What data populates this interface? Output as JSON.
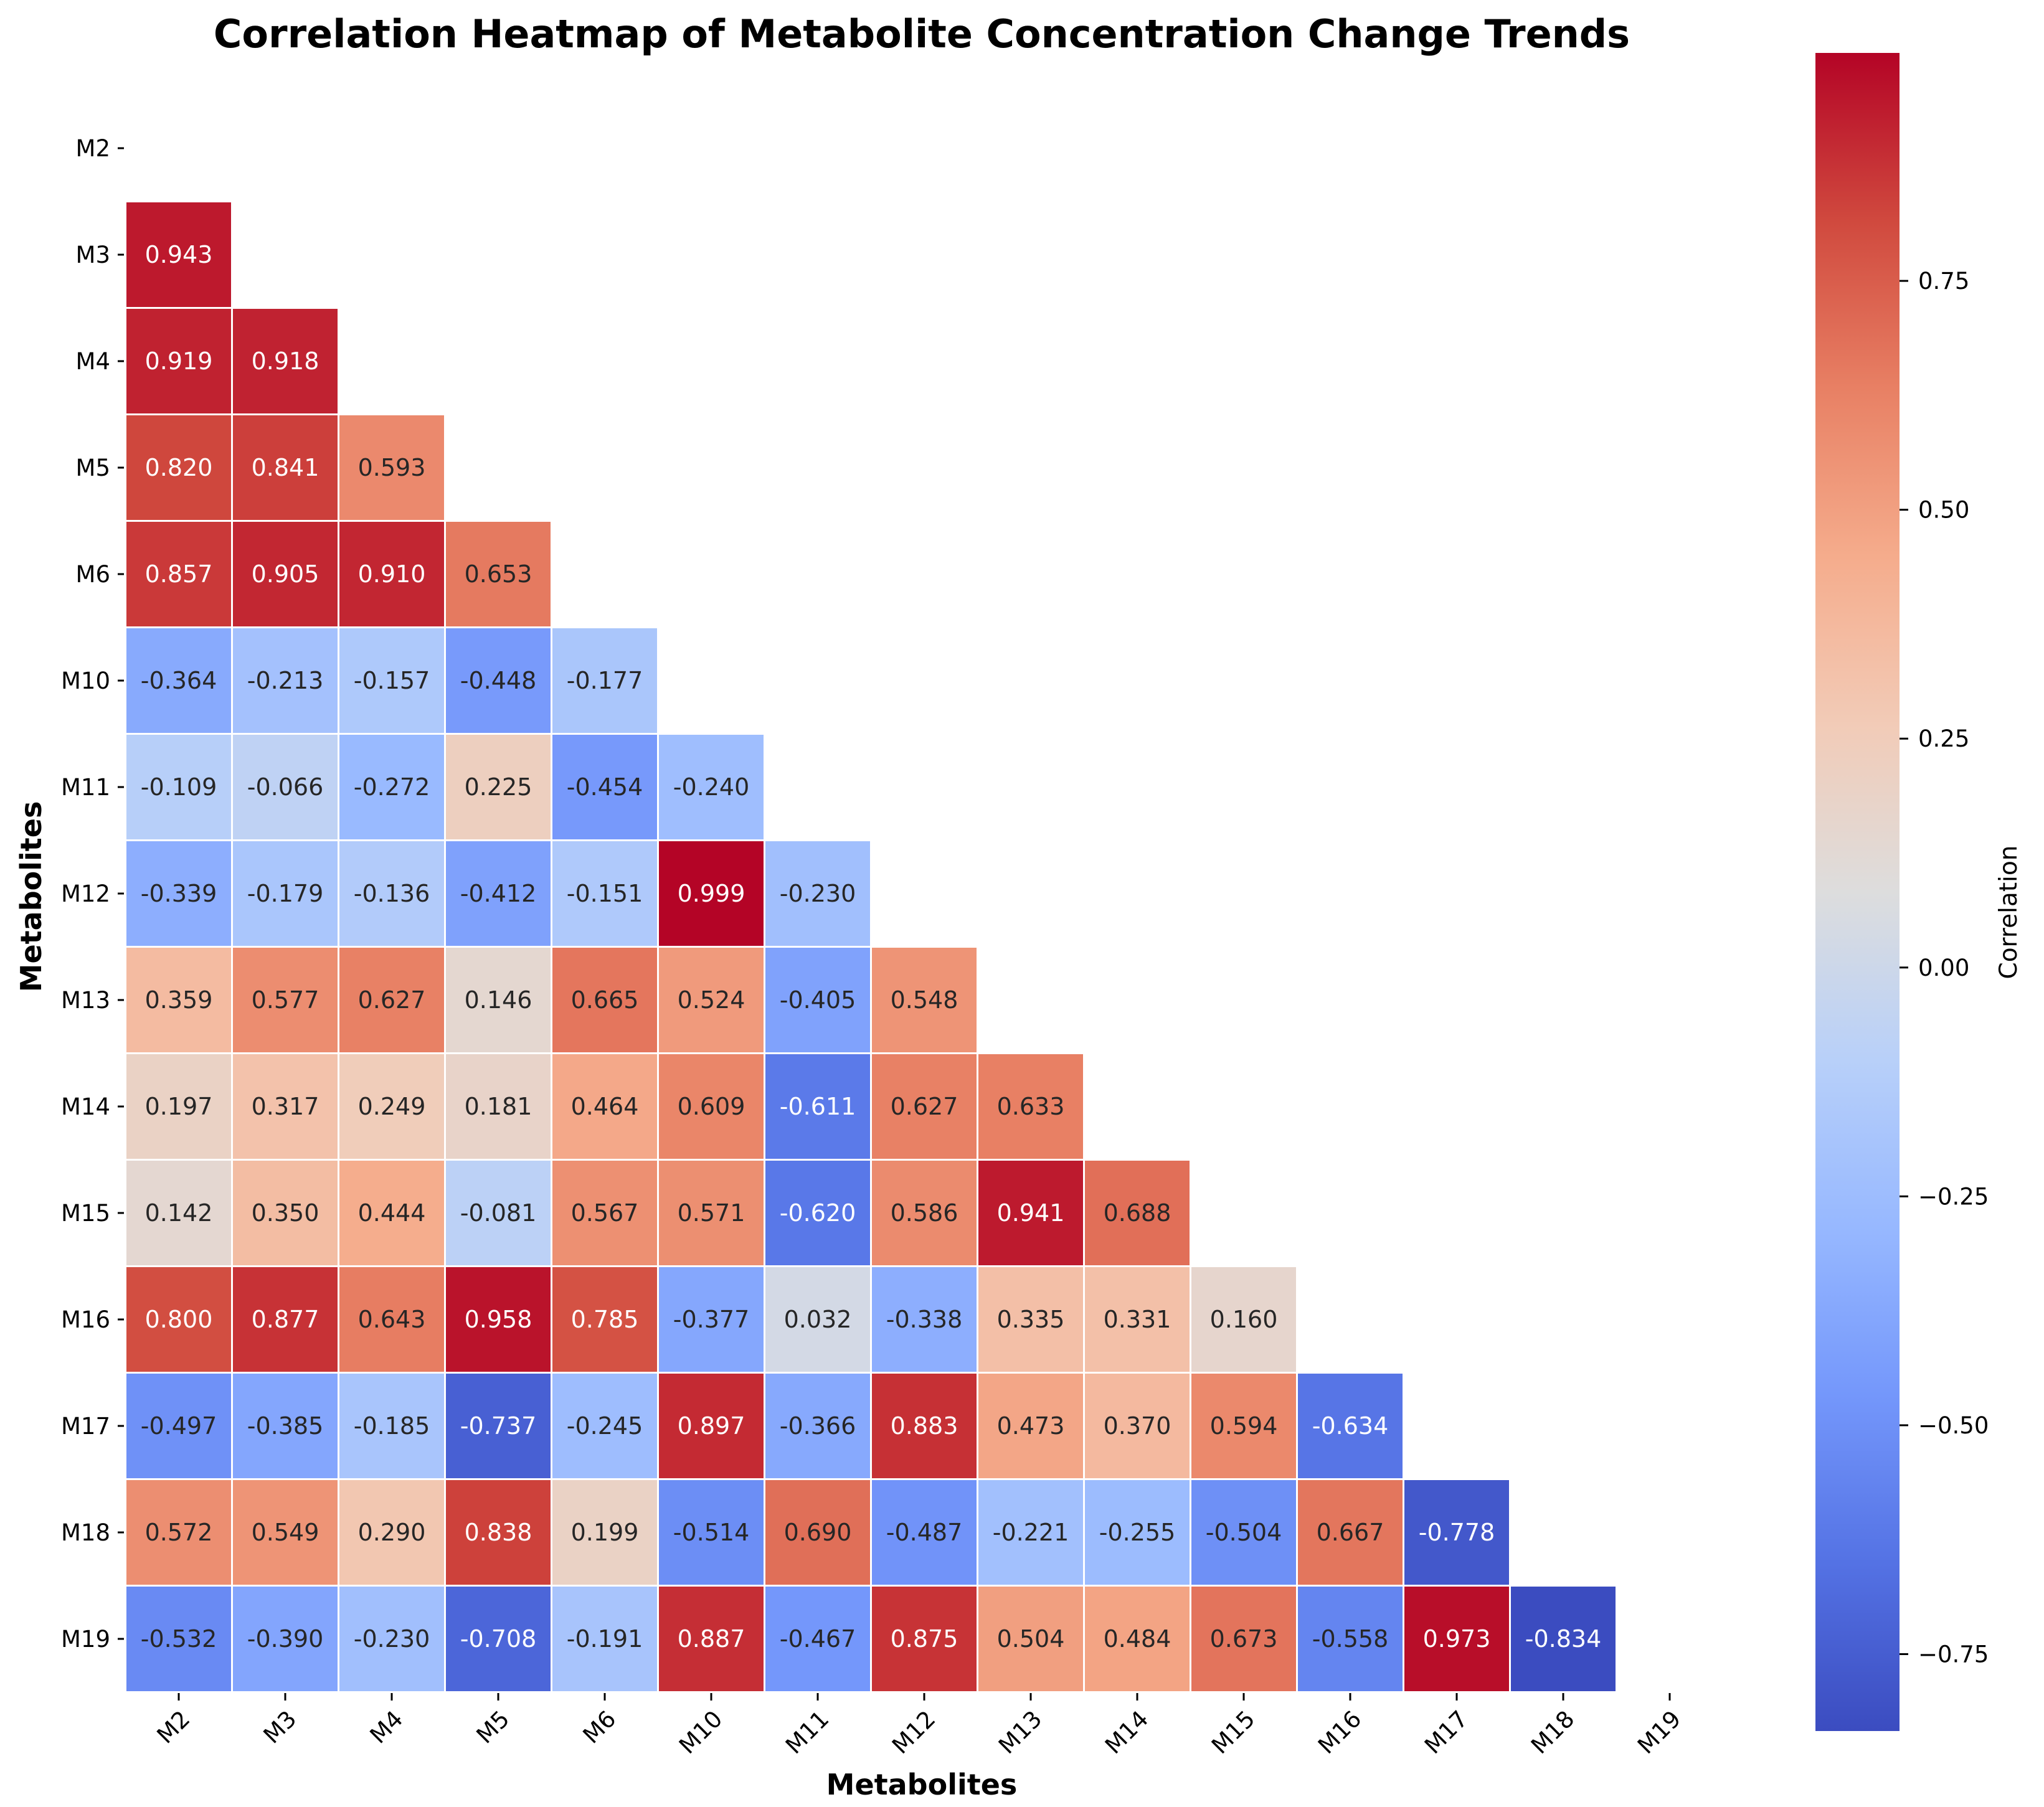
{
  "chart_data": {
    "type": "heatmap",
    "title": "Correlation Heatmap of Metabolite Concentration Change Trends",
    "xlabel": "Metabolites",
    "ylabel": "Metabolites",
    "labels": [
      "M2",
      "M3",
      "M4",
      "M5",
      "M6",
      "M10",
      "M11",
      "M12",
      "M13",
      "M14",
      "M15",
      "M16",
      "M17",
      "M18",
      "M19"
    ],
    "mask": "upper-triangle-including-diagonal",
    "lower_triangle": [
      [],
      [
        0.943
      ],
      [
        0.919,
        0.918
      ],
      [
        0.82,
        0.841,
        0.593
      ],
      [
        0.857,
        0.905,
        0.91,
        0.653
      ],
      [
        -0.364,
        -0.213,
        -0.157,
        -0.448,
        -0.177
      ],
      [
        -0.109,
        -0.066,
        -0.272,
        0.225,
        -0.454,
        -0.24
      ],
      [
        -0.339,
        -0.179,
        -0.136,
        -0.412,
        -0.151,
        0.999,
        -0.23
      ],
      [
        0.359,
        0.577,
        0.627,
        0.146,
        0.665,
        0.524,
        -0.405,
        0.548
      ],
      [
        0.197,
        0.317,
        0.249,
        0.181,
        0.464,
        0.609,
        -0.611,
        0.627,
        0.633
      ],
      [
        0.142,
        0.35,
        0.444,
        -0.081,
        0.567,
        0.571,
        -0.62,
        0.586,
        0.941,
        0.688
      ],
      [
        0.8,
        0.877,
        0.643,
        0.958,
        0.785,
        -0.377,
        0.032,
        -0.338,
        0.335,
        0.331,
        0.16
      ],
      [
        -0.497,
        -0.385,
        -0.185,
        -0.737,
        -0.245,
        0.897,
        -0.366,
        0.883,
        0.473,
        0.37,
        0.594,
        -0.634
      ],
      [
        0.572,
        0.549,
        0.29,
        0.838,
        0.199,
        -0.514,
        0.69,
        -0.487,
        -0.221,
        -0.255,
        -0.504,
        0.667,
        -0.778
      ],
      [
        -0.532,
        -0.39,
        -0.23,
        -0.708,
        -0.191,
        0.887,
        -0.467,
        0.875,
        0.504,
        0.484,
        0.673,
        -0.558,
        0.973,
        -0.834
      ]
    ],
    "colormap": "coolwarm",
    "vmin": -0.834,
    "vmax": 0.999,
    "colorbar": {
      "label": "Correlation",
      "ticks": [
        0.75,
        0.5,
        0.25,
        0.0,
        -0.25,
        -0.5,
        -0.75
      ],
      "tick_labels": [
        "0.75",
        "0.50",
        "0.25",
        "0.00",
        "−0.25",
        "−0.50",
        "−0.75"
      ]
    }
  }
}
